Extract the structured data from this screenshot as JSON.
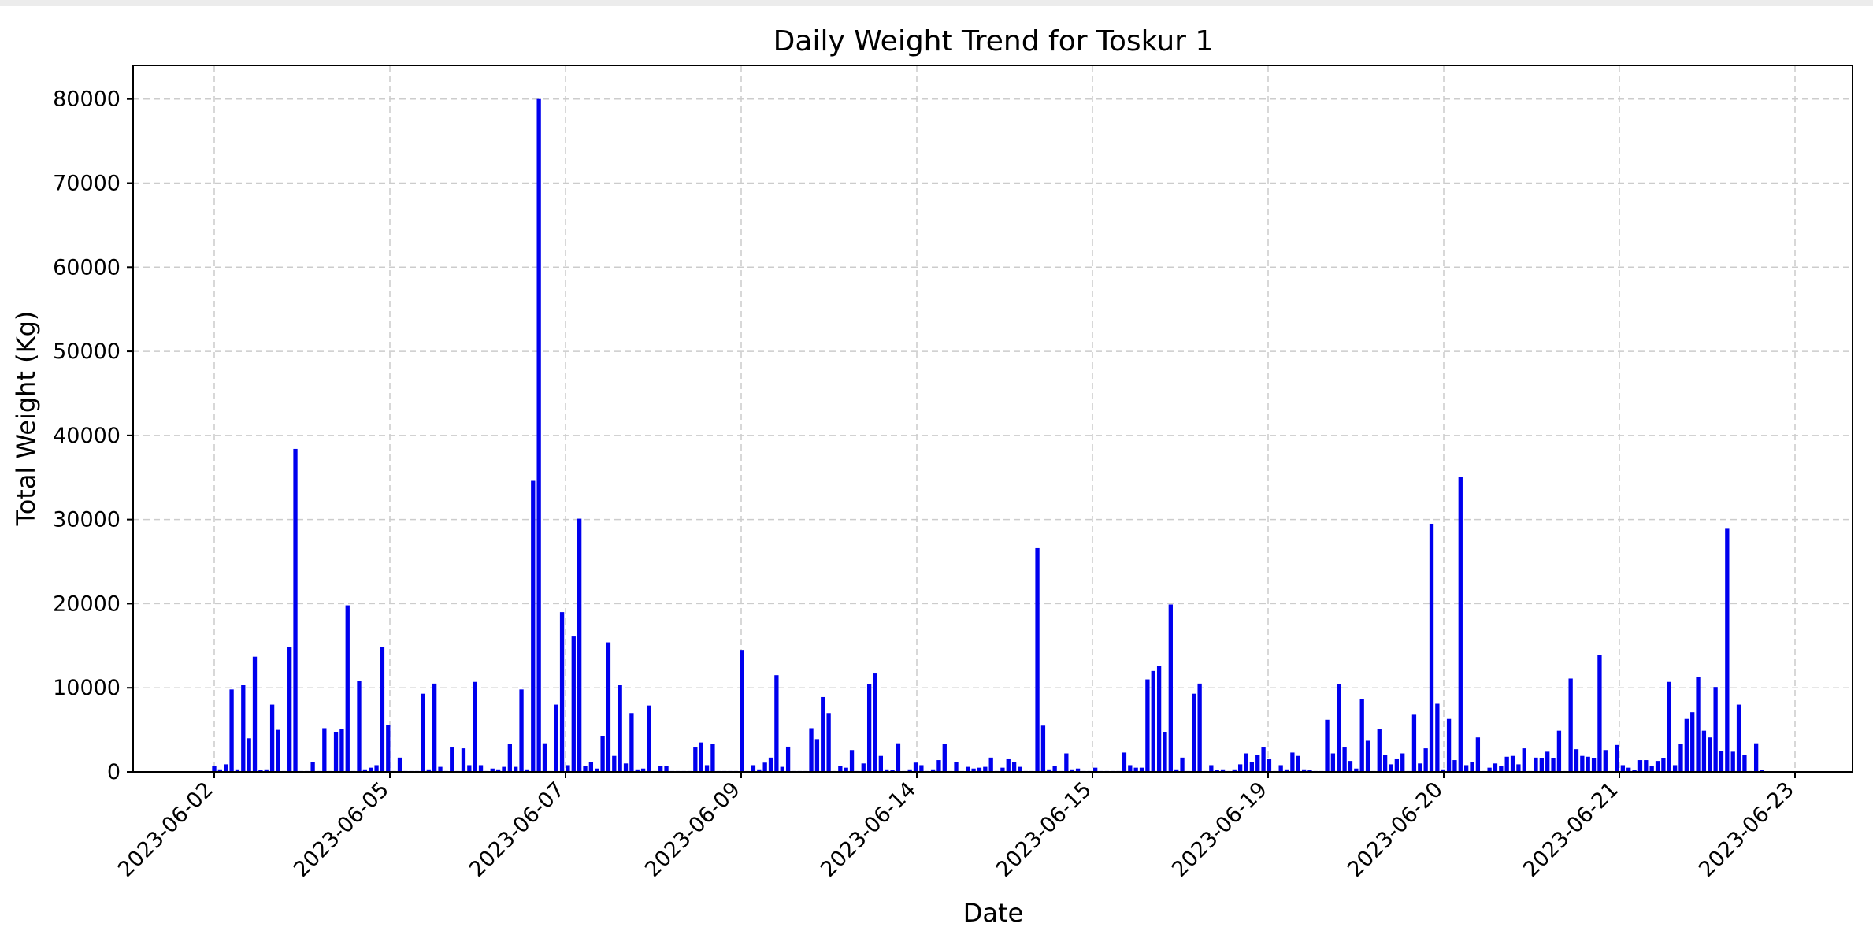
{
  "chart_data": {
    "type": "bar",
    "title": "Daily Weight Trend for Toskur 1",
    "xlabel": "Date",
    "ylabel": "Total Weight (Kg)",
    "x_tick_labels": [
      "2023-06-02",
      "2023-06-05",
      "2023-06-07",
      "2023-06-09",
      "2023-06-14",
      "2023-06-15",
      "2023-06-19",
      "2023-06-20",
      "2023-06-21",
      "2023-06-23"
    ],
    "y_tick_labels": [
      "0",
      "10000",
      "20000",
      "30000",
      "40000",
      "50000",
      "60000",
      "70000",
      "80000"
    ],
    "ylim": [
      0,
      84000
    ],
    "grid": true,
    "bar_color": "#0000ee",
    "grid_color": "#cccccc",
    "values": [
      700,
      300,
      900,
      9800,
      300,
      10300,
      4000,
      13700,
      200,
      300,
      8000,
      5000,
      100,
      14800,
      38400,
      100,
      100,
      1200,
      100,
      5200,
      100,
      4700,
      5100,
      19800,
      100,
      10800,
      300,
      500,
      800,
      14800,
      5600,
      100,
      1700,
      100,
      100,
      100,
      9300,
      300,
      10500,
      600,
      100,
      2900,
      100,
      2800,
      800,
      10700,
      800,
      100,
      400,
      300,
      600,
      3300,
      600,
      9800,
      300,
      34600,
      80000,
      3400,
      100,
      8000,
      19000,
      800,
      16100,
      30100,
      700,
      1200,
      400,
      4300,
      15400,
      1900,
      10300,
      1000,
      7000,
      300,
      400,
      7900,
      100,
      700,
      700,
      100,
      100,
      100,
      100,
      2900,
      3500,
      800,
      3300,
      100,
      100,
      100,
      100,
      14500,
      100,
      800,
      300,
      1100,
      1700,
      11500,
      600,
      3000,
      100,
      100,
      100,
      5200,
      3900,
      8900,
      7000,
      100,
      700,
      500,
      2600,
      100,
      1000,
      10400,
      11700,
      1900,
      300,
      200,
      3400,
      100,
      300,
      1100,
      800,
      100,
      300,
      1400,
      3300,
      100,
      1200,
      100,
      600,
      400,
      500,
      600,
      1700,
      100,
      500,
      1500,
      1200,
      600,
      100,
      100,
      26600,
      5500,
      300,
      700,
      100,
      2200,
      300,
      400,
      100,
      100,
      500,
      100,
      100,
      100,
      100,
      2300,
      800,
      500,
      500,
      11000,
      12000,
      12600,
      4700,
      19900,
      300,
      1700,
      100,
      9300,
      10500,
      100,
      800,
      200,
      300,
      100,
      300,
      900,
      2200,
      1200,
      2000,
      2900,
      1500,
      100,
      800,
      300,
      2300,
      1900,
      300,
      200,
      100,
      100,
      6200,
      2200,
      10400,
      2900,
      1300,
      400,
      8700,
      3700,
      100,
      5100,
      2000,
      900,
      1500,
      2200,
      100,
      6800,
      1000,
      2800,
      29500,
      8100,
      300,
      6300,
      1400,
      35100,
      800,
      1200,
      4100,
      100,
      500,
      1000,
      700,
      1800,
      1900,
      900,
      2800,
      100,
      1700,
      1600,
      2400,
      1600,
      4900,
      100,
      11100,
      2700,
      1900,
      1800,
      1600,
      13900,
      2600,
      100,
      3200,
      800,
      500,
      200,
      1400,
      1400,
      700,
      1300,
      1600,
      10700,
      800,
      3300,
      6300,
      7100,
      11300,
      4900,
      4100,
      10100,
      2500,
      28900,
      2400,
      8000,
      2000,
      100,
      3400,
      200
    ]
  }
}
